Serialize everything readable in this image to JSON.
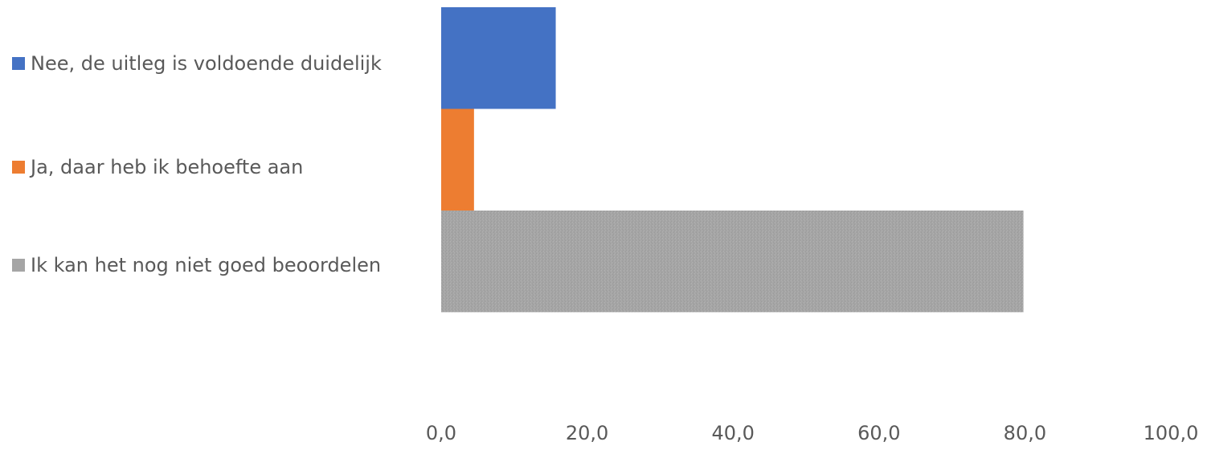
{
  "chart_data": {
    "type": "bar",
    "orientation": "horizontal",
    "stacked": false,
    "series": [
      {
        "name": "Nee, de uitleg is voldoende duidelijk",
        "value": 15.7,
        "color": "#4472C4",
        "pattern": "solid"
      },
      {
        "name": "Ja, daar heb ik behoefte aan",
        "value": 4.5,
        "color": "#ED7D31",
        "pattern": "solid"
      },
      {
        "name": "Ik kan het nog niet goed beoordelen",
        "value": 79.8,
        "color": "#A5A5A5",
        "pattern": "textured"
      }
    ],
    "xlim": [
      0,
      100
    ],
    "x_ticks": [
      "0,0",
      "20,0",
      "40,0",
      "60,0",
      "80,0",
      "100,0"
    ],
    "grid": false,
    "legend_position": "left",
    "title": "",
    "xlabel": "",
    "ylabel": ""
  }
}
